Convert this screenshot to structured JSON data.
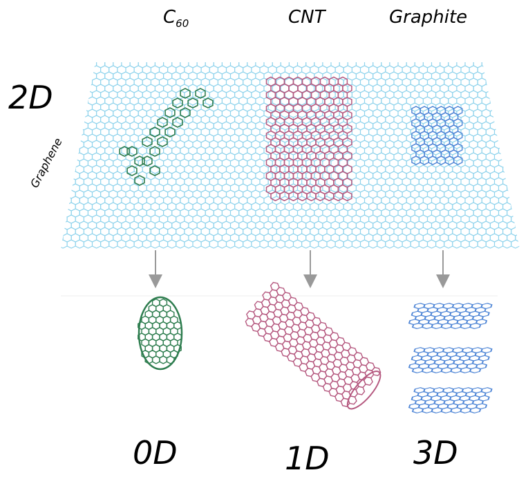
{
  "labels": {
    "c60_main": "C",
    "c60_sub": "60",
    "cnt": "CNT",
    "graphite": "Graphite",
    "graphene": "Graphene",
    "dim_2d": "2D",
    "dim_0d": "0D",
    "dim_1d": "1D",
    "dim_3d": "3D"
  },
  "colors": {
    "graphene": "#8fd3ec",
    "c60": "#2e7d4f",
    "cnt": "#b5587f",
    "graphite": "#4f86d6",
    "arrow": "#999999"
  }
}
